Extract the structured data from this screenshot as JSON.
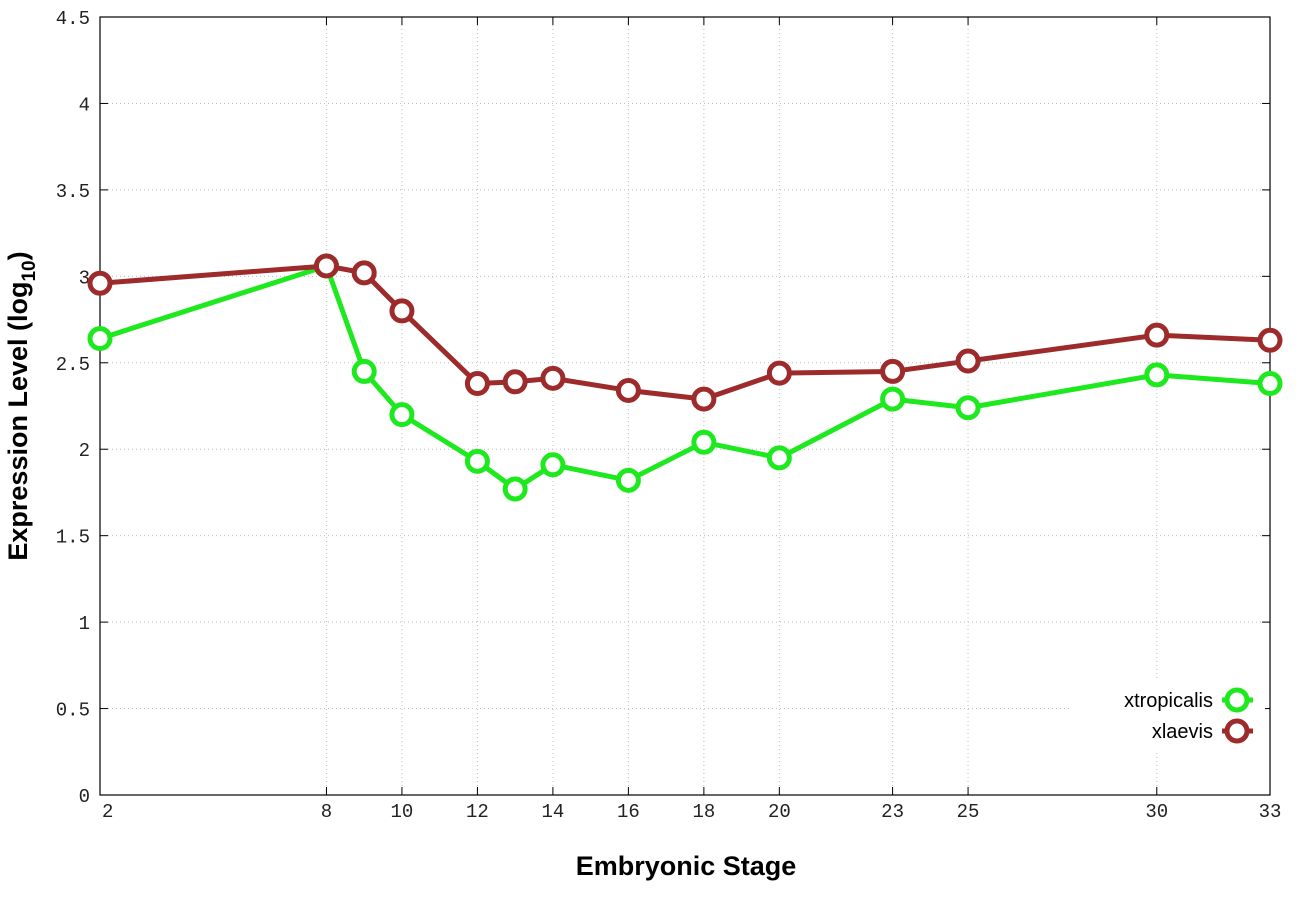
{
  "chart_data": {
    "type": "line",
    "xlabel": "Embryonic Stage",
    "ylabel": "Expression Level (log",
    "ylabel_sub": "10",
    "ylabel_close": ")",
    "xlim": [
      2,
      33
    ],
    "ylim": [
      0,
      4.5
    ],
    "x_ticks": [
      2,
      8,
      10,
      12,
      14,
      16,
      18,
      20,
      23,
      25,
      30,
      33
    ],
    "y_ticks": [
      0,
      0.5,
      1,
      1.5,
      2,
      2.5,
      3,
      3.5,
      4,
      4.5
    ],
    "y_tick_labels": [
      "0",
      "0.5",
      "1",
      "1.5",
      "2",
      "2.5",
      "3",
      "3.5",
      "4",
      "4.5"
    ],
    "grid": true,
    "legend_position": "bottom-right",
    "x": [
      2,
      8,
      9,
      10,
      12,
      13,
      14,
      16,
      18,
      20,
      23,
      25,
      30,
      33
    ],
    "series": [
      {
        "name": "xtropicalis",
        "color": "#1ee81e",
        "values": [
          2.64,
          3.06,
          2.45,
          2.2,
          1.93,
          1.77,
          1.91,
          1.82,
          2.04,
          1.95,
          2.29,
          2.24,
          2.43,
          2.38
        ]
      },
      {
        "name": "xlaevis",
        "color": "#9e2b2b",
        "values": [
          2.96,
          3.06,
          3.02,
          2.8,
          2.38,
          2.39,
          2.41,
          2.34,
          2.29,
          2.44,
          2.45,
          2.51,
          2.66,
          2.63
        ]
      }
    ]
  }
}
